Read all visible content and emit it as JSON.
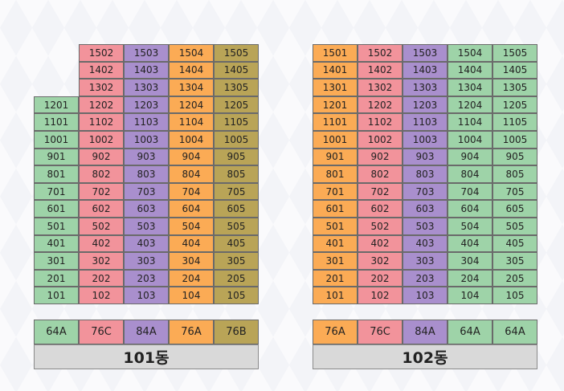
{
  "colors": {
    "A": "#9ed3a8",
    "B": "#f2939b",
    "C": "#a98fcd",
    "D": "#fbab55",
    "E": "#b9a457"
  },
  "buildings": [
    {
      "name": "101동",
      "columns": [
        {
          "color": "A",
          "units": [
            "1201",
            "1101",
            "1001",
            "901",
            "801",
            "701",
            "601",
            "501",
            "401",
            "301",
            "201",
            "101"
          ]
        },
        {
          "color": "B",
          "units": [
            "1502",
            "1402",
            "1302",
            "1202",
            "1102",
            "1002",
            "902",
            "802",
            "702",
            "602",
            "502",
            "402",
            "302",
            "202",
            "102"
          ]
        },
        {
          "color": "C",
          "units": [
            "1503",
            "1403",
            "1303",
            "1203",
            "1103",
            "1003",
            "903",
            "803",
            "703",
            "603",
            "503",
            "403",
            "303",
            "203",
            "103"
          ]
        },
        {
          "color": "D",
          "units": [
            "1504",
            "1404",
            "1304",
            "1204",
            "1104",
            "1004",
            "904",
            "804",
            "704",
            "604",
            "504",
            "404",
            "304",
            "204",
            "104"
          ]
        },
        {
          "color": "E",
          "units": [
            "1505",
            "1405",
            "1305",
            "1205",
            "1105",
            "1005",
            "905",
            "805",
            "705",
            "605",
            "505",
            "405",
            "305",
            "205",
            "105"
          ]
        }
      ],
      "types": [
        {
          "label": "64A",
          "color": "A"
        },
        {
          "label": "76C",
          "color": "B"
        },
        {
          "label": "84A",
          "color": "C"
        },
        {
          "label": "76A",
          "color": "D"
        },
        {
          "label": "76B",
          "color": "E"
        }
      ]
    },
    {
      "name": "102동",
      "columns": [
        {
          "color": "D",
          "units": [
            "1501",
            "1401",
            "1301",
            "1201",
            "1101",
            "1001",
            "901",
            "801",
            "701",
            "601",
            "501",
            "401",
            "301",
            "201",
            "101"
          ]
        },
        {
          "color": "B",
          "units": [
            "1502",
            "1402",
            "1302",
            "1202",
            "1102",
            "1002",
            "902",
            "802",
            "702",
            "602",
            "502",
            "402",
            "302",
            "202",
            "102"
          ]
        },
        {
          "color": "C",
          "units": [
            "1503",
            "1403",
            "1303",
            "1203",
            "1103",
            "1003",
            "903",
            "803",
            "703",
            "603",
            "503",
            "403",
            "303",
            "203",
            "103"
          ]
        },
        {
          "color": "A",
          "units": [
            "1504",
            "1404",
            "1304",
            "1204",
            "1104",
            "1004",
            "904",
            "804",
            "704",
            "604",
            "504",
            "404",
            "304",
            "204",
            "104"
          ]
        },
        {
          "color": "A",
          "units": [
            "1505",
            "1405",
            "1305",
            "1205",
            "1105",
            "1005",
            "905",
            "805",
            "705",
            "605",
            "505",
            "405",
            "305",
            "205",
            "105"
          ]
        }
      ],
      "types": [
        {
          "label": "76A",
          "color": "D"
        },
        {
          "label": "76C",
          "color": "B"
        },
        {
          "label": "84A",
          "color": "C"
        },
        {
          "label": "64A",
          "color": "A"
        },
        {
          "label": "64A",
          "color": "A"
        }
      ]
    }
  ]
}
